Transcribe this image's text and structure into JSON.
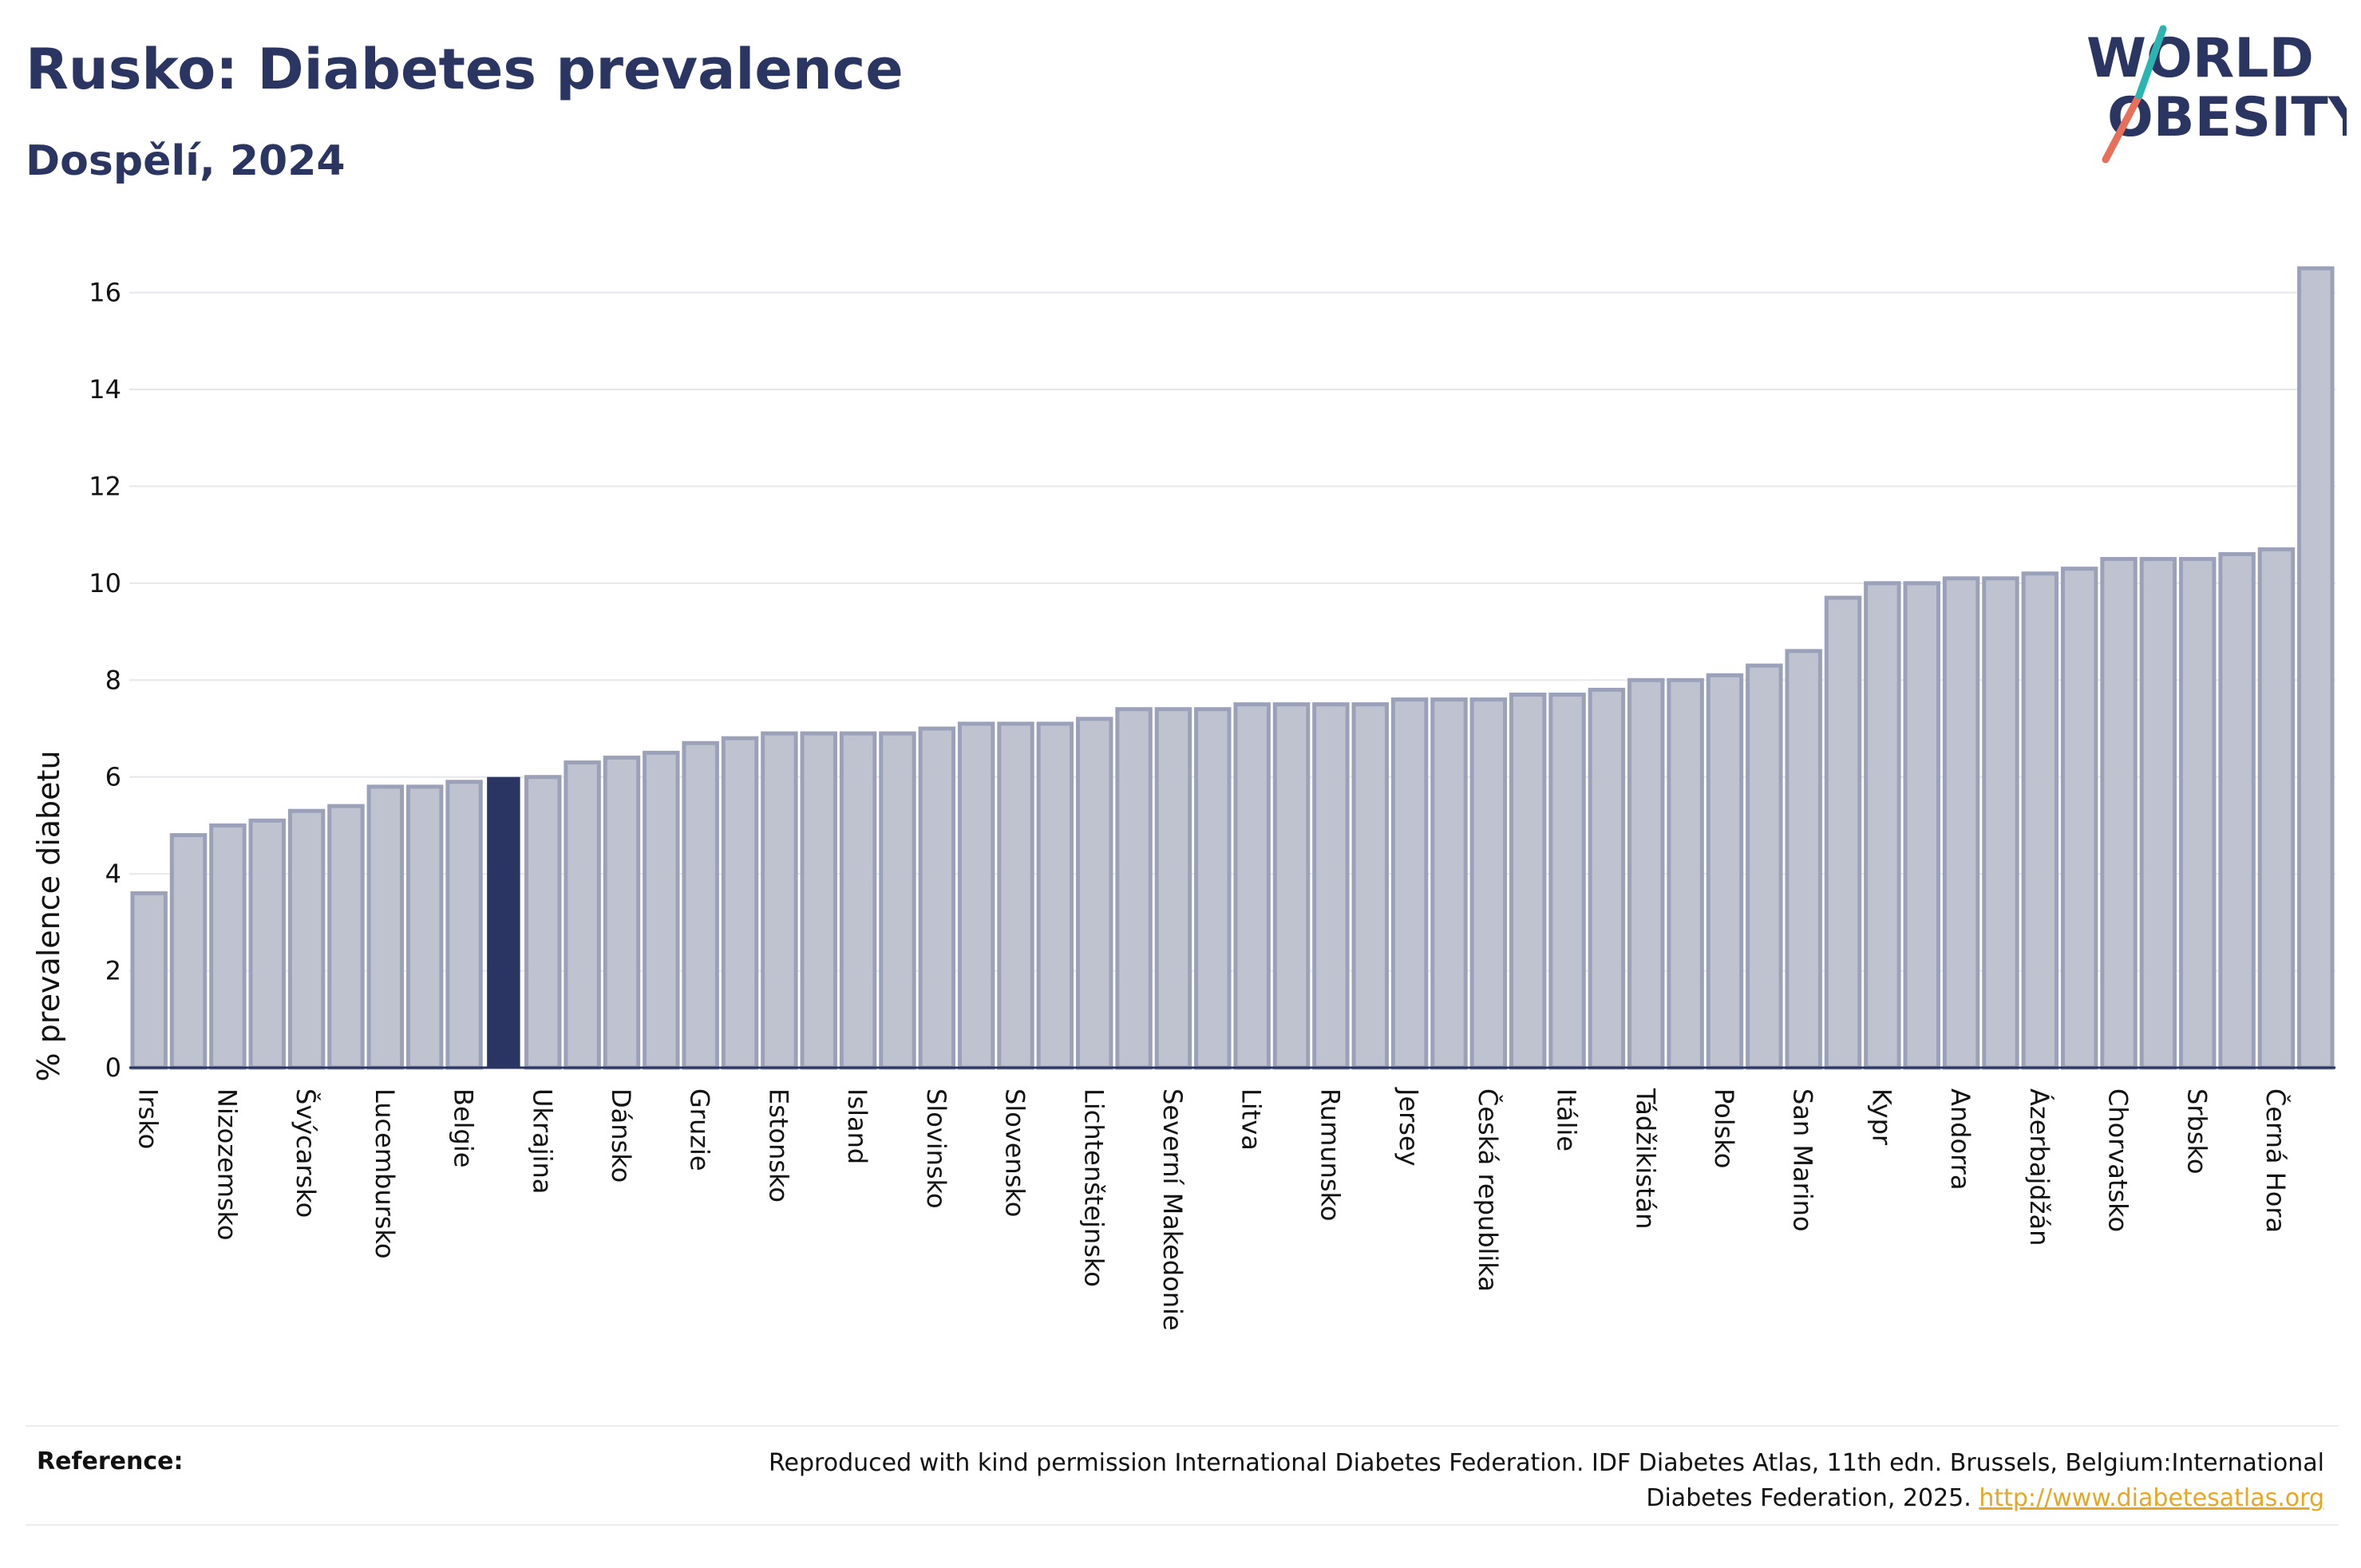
{
  "header": {
    "title": "Rusko: Diabetes prevalence",
    "subtitle": "Dospělí, 2024"
  },
  "logo": {
    "line1": "WORLD",
    "line2": "OBESITY",
    "slash_colors": [
      "#e8705a",
      "#2ab5b0"
    ]
  },
  "chart_data": {
    "type": "bar",
    "ylabel": "% prevalence diabetu",
    "xlabel": "",
    "ylim": [
      0,
      16.8
    ],
    "yticks": [
      0,
      2,
      4,
      6,
      8,
      10,
      12,
      14,
      16
    ],
    "grid": true,
    "highlight_color": "#2b3562",
    "bar_color": "#bfc3d0",
    "bar_edge_color": "#9ba1b8",
    "categories": [
      "Irsko",
      "",
      "Nizozemsko",
      "",
      "Švýcarsko",
      "",
      "Lucembursko",
      "",
      "Belgie",
      "Rusko",
      "Ukrajina",
      "",
      "Dánsko",
      "",
      "Gruzie",
      "",
      "Estonsko",
      "",
      "Island",
      "",
      "Slovinsko",
      "",
      "Slovensko",
      "",
      "Lichtenštejnsko",
      "",
      "Severní Makedonie",
      "",
      "Litva",
      "",
      "Rumunsko",
      "",
      "Jersey",
      "",
      "Česká republika",
      "",
      "Itálie",
      "",
      "Tádžikistán",
      "",
      "Polsko",
      "",
      "San Marino",
      "",
      "Kypr",
      "",
      "Andorra",
      "",
      "Ázerbajdžán",
      "",
      "Chorvatsko",
      "",
      "Srbsko",
      "",
      "Černá Hora",
      ""
    ],
    "tick_labels": [
      "Irsko",
      "Nizozemsko",
      "Švýcarsko",
      "Lucembursko",
      "Belgie",
      "Ukrajina",
      "Dánsko",
      "Gruzie",
      "Estonsko",
      "Island",
      "Slovinsko",
      "Slovensko",
      "Lichtenštejnsko",
      "Severní Makedonie",
      "Litva",
      "Rumunsko",
      "Jersey",
      "Česká republika",
      "Itálie",
      "Tádžikistán",
      "Polsko",
      "San Marino",
      "Kypr",
      "Andorra",
      "Ázerbajdžán",
      "Chorvatsko",
      "Srbsko",
      "Černá Hora"
    ],
    "values": [
      3.6,
      4.8,
      5.0,
      5.1,
      5.3,
      5.4,
      5.8,
      5.8,
      5.9,
      6.0,
      6.0,
      6.3,
      6.4,
      6.5,
      6.7,
      6.8,
      6.9,
      6.9,
      6.9,
      6.9,
      7.0,
      7.1,
      7.1,
      7.1,
      7.2,
      7.4,
      7.4,
      7.4,
      7.5,
      7.5,
      7.5,
      7.5,
      7.6,
      7.6,
      7.6,
      7.7,
      7.7,
      7.8,
      8.0,
      8.0,
      8.1,
      8.3,
      8.6,
      9.7,
      10.0,
      10.0,
      10.1,
      10.1,
      10.2,
      10.3,
      10.5,
      10.5,
      10.5,
      10.6,
      10.7,
      16.5
    ],
    "highlight_index": 9
  },
  "footer": {
    "reference_label": "Reference:",
    "reference_text": "Reproduced with kind permission International Diabetes Federation. IDF Diabetes Atlas, 11th edn. Brussels, Belgium:International Diabetes Federation, 2025.",
    "reference_link": "http://www.diabetesatlas.org"
  }
}
